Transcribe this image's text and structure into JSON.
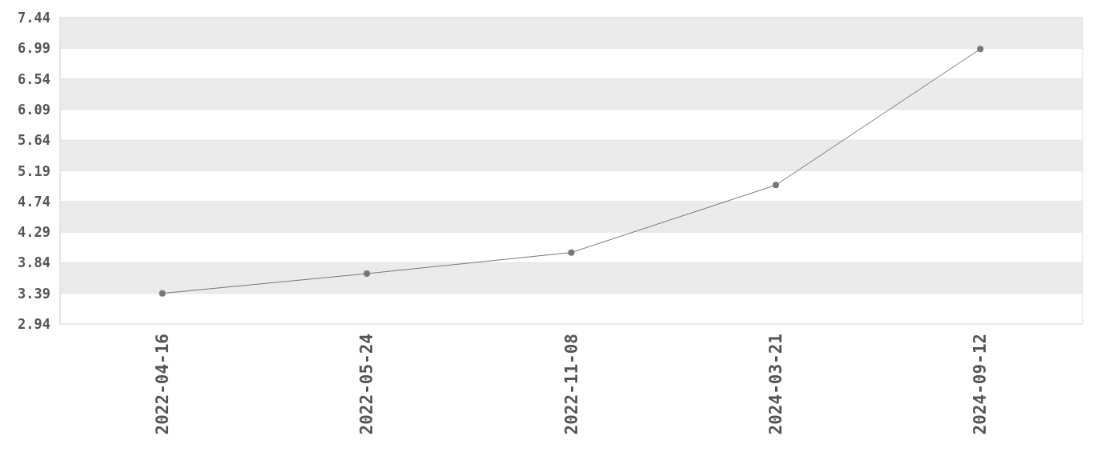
{
  "chart_data": {
    "type": "line",
    "categories": [
      "2022-04-16",
      "2022-05-24",
      "2022-11-08",
      "2024-03-21",
      "2024-09-12"
    ],
    "series": [
      {
        "color": "#777777",
        "values": [
          3.39,
          3.68,
          3.99,
          4.98,
          6.98
        ]
      }
    ],
    "ylim": [
      2.94,
      7.44
    ],
    "yticks": [
      2.94,
      3.39,
      3.84,
      4.29,
      4.74,
      5.19,
      5.64,
      6.09,
      6.54,
      6.99,
      7.44
    ],
    "grid": "y",
    "marker": "circle",
    "line_style": "solid"
  }
}
